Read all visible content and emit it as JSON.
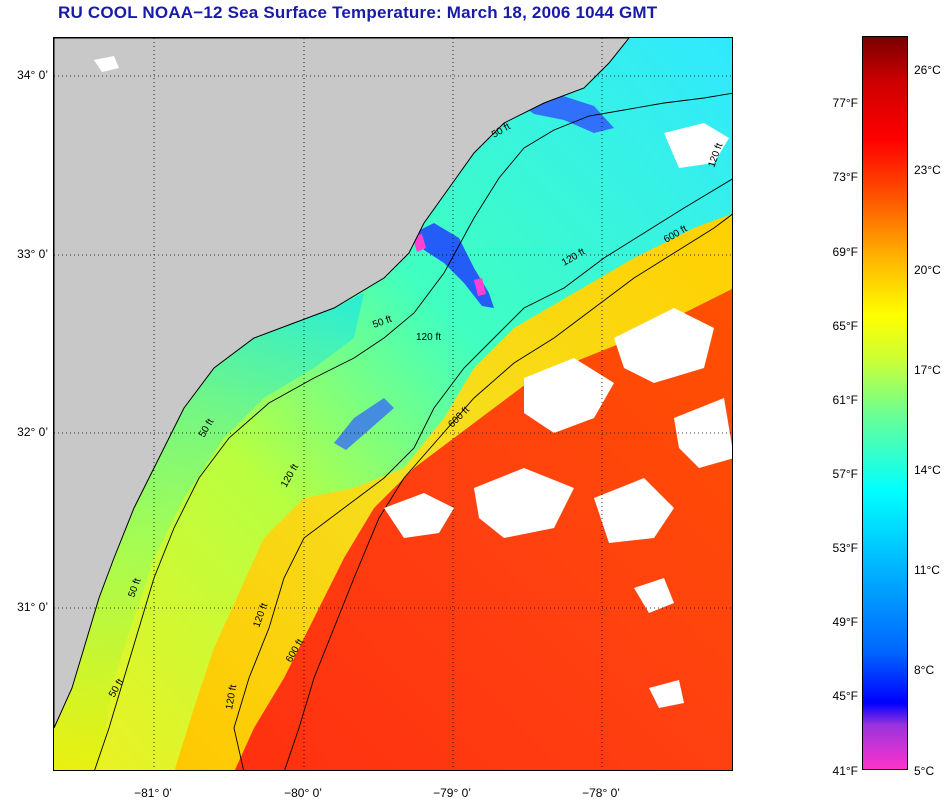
{
  "title": "RU COOL  NOAA−12  Sea Surface Temperature:  March 18, 2006 1044 GMT",
  "map": {
    "lat_labels": [
      "34° 0’",
      "33° 0’",
      "32° 0’",
      "31° 0’"
    ],
    "lon_labels": [
      "−81° 0’",
      "−80° 0’",
      "−79° 0’",
      "−78° 0’"
    ],
    "isobaths": [
      "50 ft",
      "120 ft",
      "600 ft"
    ],
    "colors": {
      "land": "#c8c8c8",
      "cloud": "#ffffff",
      "coast": "#000000",
      "grid": "#000000"
    }
  },
  "colorbar": {
    "fahrenheit_labels": [
      "77°F",
      "73°F",
      "69°F",
      "65°F",
      "61°F",
      "57°F",
      "53°F",
      "49°F",
      "45°F",
      "41°F"
    ],
    "celsius_labels": [
      "26°C",
      "23°C",
      "20°C",
      "17°C",
      "14°C",
      "11°C",
      "8°C",
      "5°C"
    ],
    "colors": [
      "#ff33cc",
      "#7a1fd0",
      "#0000ff",
      "#0099ff",
      "#00ffff",
      "#66ff99",
      "#ffff00",
      "#ff9900",
      "#ff0000",
      "#7a0000"
    ]
  }
}
